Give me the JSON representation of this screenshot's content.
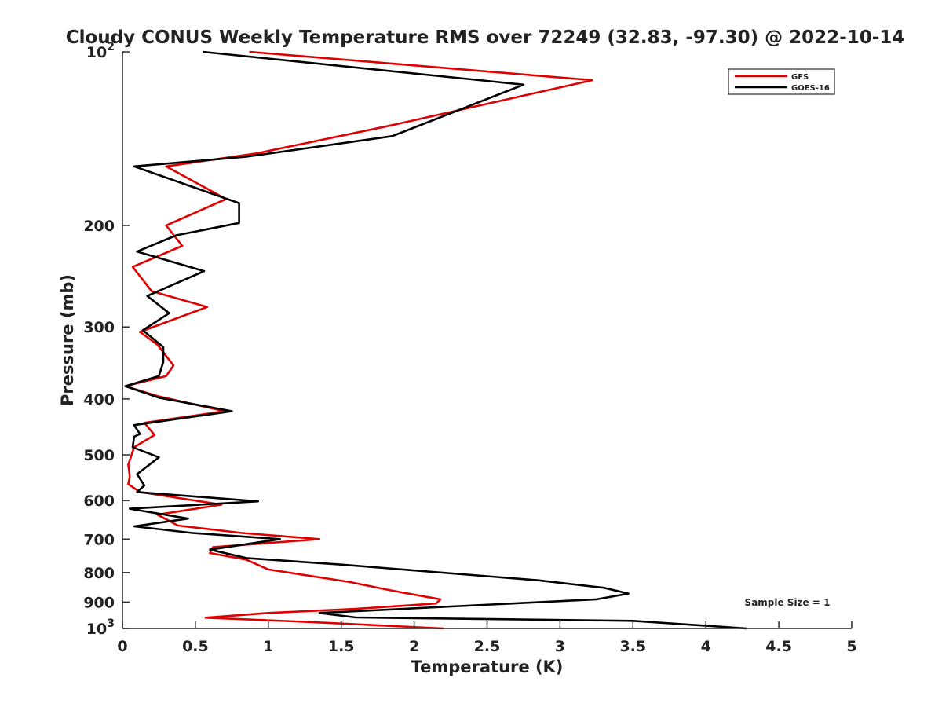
{
  "chart_data": {
    "type": "line",
    "title": "Cloudy CONUS Weekly Temperature RMS over 72249 (32.83, -97.30) @ 2022-10-14",
    "xlabel": "Temperature (K)",
    "ylabel": "Pressure (mb)",
    "xlim": [
      0,
      5
    ],
    "ylim": [
      100,
      1000
    ],
    "yscale": "log",
    "y_reversed": true,
    "grid": false,
    "legend_position": "top-right",
    "x_ticks": [
      0,
      0.5,
      1,
      1.5,
      2,
      2.5,
      3,
      3.5,
      4,
      4.5,
      5
    ],
    "x_tick_labels": [
      "0",
      "0.5",
      "1",
      "1.5",
      "2",
      "2.5",
      "3",
      "3.5",
      "4",
      "4.5",
      "5"
    ],
    "y_ticks": [
      100,
      200,
      300,
      400,
      500,
      600,
      700,
      800,
      900,
      1000
    ],
    "y_tick_labels": [
      {
        "base": "10",
        "exp": "2"
      },
      {
        "base": "200",
        "exp": ""
      },
      {
        "base": "300",
        "exp": ""
      },
      {
        "base": "400",
        "exp": ""
      },
      {
        "base": "500",
        "exp": ""
      },
      {
        "base": "600",
        "exp": ""
      },
      {
        "base": "700",
        "exp": ""
      },
      {
        "base": "800",
        "exp": ""
      },
      {
        "base": "900",
        "exp": ""
      },
      {
        "base": "10",
        "exp": "3"
      }
    ],
    "series": [
      {
        "name": "GFS",
        "color": "#e00000",
        "points": [
          [
            0.87,
            100
          ],
          [
            3.22,
            112
          ],
          [
            1.85,
            134
          ],
          [
            0.92,
            150
          ],
          [
            0.3,
            158
          ],
          [
            0.71,
            180
          ],
          [
            0.3,
            200
          ],
          [
            0.41,
            217
          ],
          [
            0.07,
            236
          ],
          [
            0.2,
            260
          ],
          [
            0.58,
            277
          ],
          [
            0.12,
            306
          ],
          [
            0.24,
            322
          ],
          [
            0.35,
            350
          ],
          [
            0.3,
            365
          ],
          [
            0.02,
            380
          ],
          [
            0.25,
            396
          ],
          [
            0.7,
            420
          ],
          [
            0.15,
            440
          ],
          [
            0.22,
            462
          ],
          [
            0.08,
            485
          ],
          [
            0.04,
            520
          ],
          [
            0.05,
            545
          ],
          [
            0.04,
            562
          ],
          [
            0.12,
            580
          ],
          [
            0.68,
            610
          ],
          [
            0.24,
            635
          ],
          [
            0.38,
            663
          ],
          [
            0.82,
            683
          ],
          [
            1.35,
            700
          ],
          [
            0.62,
            723
          ],
          [
            0.6,
            740
          ],
          [
            0.85,
            760
          ],
          [
            1.0,
            790
          ],
          [
            1.55,
            830
          ],
          [
            1.85,
            860
          ],
          [
            2.18,
            890
          ],
          [
            2.15,
            905
          ],
          [
            1.6,
            925
          ],
          [
            1.0,
            940
          ],
          [
            0.57,
            958
          ],
          [
            1.3,
            975
          ],
          [
            2.2,
            1000
          ]
        ]
      },
      {
        "name": "GOES-16",
        "color": "#000000",
        "points": [
          [
            0.55,
            100
          ],
          [
            2.75,
            114
          ],
          [
            1.85,
            140
          ],
          [
            0.85,
            152
          ],
          [
            0.08,
            158
          ],
          [
            0.58,
            175
          ],
          [
            0.8,
            183
          ],
          [
            0.8,
            198
          ],
          [
            0.37,
            208
          ],
          [
            0.1,
            222
          ],
          [
            0.56,
            240
          ],
          [
            0.17,
            265
          ],
          [
            0.32,
            284
          ],
          [
            0.14,
            304
          ],
          [
            0.28,
            325
          ],
          [
            0.28,
            345
          ],
          [
            0.25,
            365
          ],
          [
            0.02,
            380
          ],
          [
            0.25,
            398
          ],
          [
            0.75,
            420
          ],
          [
            0.08,
            444
          ],
          [
            0.12,
            460
          ],
          [
            0.08,
            465
          ],
          [
            0.07,
            485
          ],
          [
            0.25,
            505
          ],
          [
            0.1,
            540
          ],
          [
            0.15,
            565
          ],
          [
            0.1,
            580
          ],
          [
            0.93,
            602
          ],
          [
            0.05,
            620
          ],
          [
            0.45,
            645
          ],
          [
            0.08,
            665
          ],
          [
            0.48,
            683
          ],
          [
            1.08,
            700
          ],
          [
            0.6,
            730
          ],
          [
            0.85,
            755
          ],
          [
            1.5,
            775
          ],
          [
            2.85,
            825
          ],
          [
            3.3,
            850
          ],
          [
            3.47,
            870
          ],
          [
            3.25,
            890
          ],
          [
            1.35,
            940
          ],
          [
            1.6,
            957
          ],
          [
            3.5,
            970
          ],
          [
            4.28,
            1000
          ]
        ]
      }
    ],
    "annotations": [
      {
        "text": "Sample Size = 1"
      }
    ]
  }
}
